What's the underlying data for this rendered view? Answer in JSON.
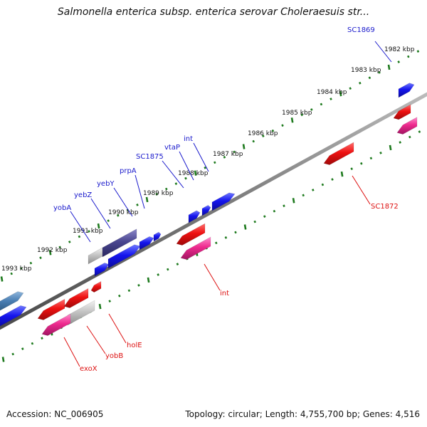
{
  "title": "Salmonella enterica subsp. enterica serovar Choleraesuis str...",
  "footer": {
    "accession": "Accession: NC_006905",
    "summary": "Topology: circular; Length: 4,755,700 bp; Genes: 4,516"
  },
  "colors": {
    "forward_label": "#1a1acc",
    "reverse_label": "#dd1111",
    "backbone": "#8a8a8a",
    "tick": "#1e7a1e"
  },
  "scale_labels": [
    "1993 kbp",
    "1992 kbp",
    "1991 kbp",
    "1990 kbp",
    "1989 kbp",
    "1988 kbp",
    "1987 kbp",
    "1986 kbp",
    "1985 kbp",
    "1984 kbp",
    "1983 kbp",
    "1982 kbp"
  ],
  "forward_labels": [
    "yobA",
    "yebZ",
    "yebY",
    "prpA",
    "SC1875",
    "vtaP",
    "int",
    "SC1869"
  ],
  "reverse_labels": [
    "exoX",
    "yobB",
    "holE",
    "int",
    "SC1872"
  ]
}
